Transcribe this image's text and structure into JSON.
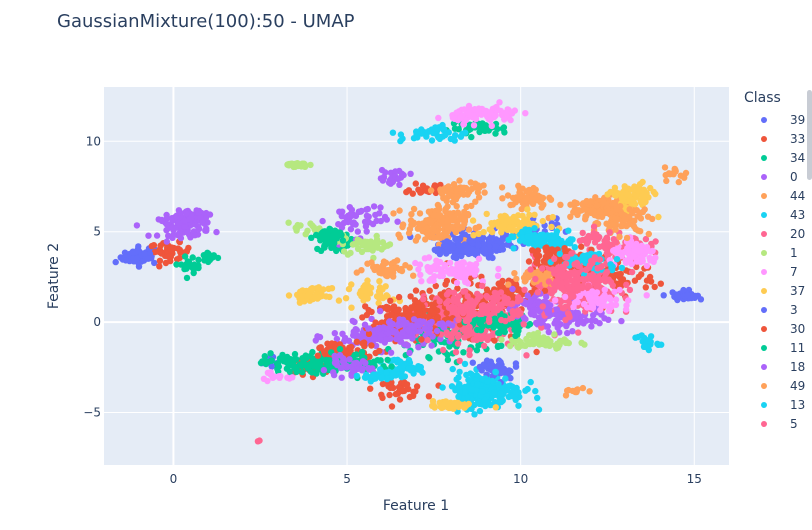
{
  "title": "GaussianMixture(100):50 - UMAP",
  "chart_data": {
    "type": "scatter",
    "title": "GaussianMixture(100):50 - UMAP",
    "xlabel": "Feature 1",
    "ylabel": "Feature 2",
    "xlim": [
      -2,
      16
    ],
    "ylim": [
      -7.9,
      13
    ],
    "xticks": [
      0,
      5,
      10,
      15
    ],
    "yticks": [
      -5,
      0,
      5,
      10
    ],
    "xtick_labels": [
      "0",
      "5",
      "10",
      "15"
    ],
    "ytick_labels": [
      "−5",
      "0",
      "5",
      "10"
    ],
    "grid": true,
    "legend_title": "Class",
    "legend_position": "right",
    "series": [
      {
        "name": "39",
        "color": "#636efa",
        "clusters": [
          [
            -0.9,
            3.7,
            0.5,
            0.4,
            35
          ],
          [
            8.7,
            4.3,
            0.9,
            0.6,
            150
          ],
          [
            14.7,
            1.5,
            0.3,
            0.2,
            25
          ],
          [
            10.3,
            5.1,
            0.6,
            0.6,
            40
          ],
          [
            2.9,
            -2.2,
            0.3,
            0.3,
            10
          ]
        ]
      },
      {
        "name": "33",
        "color": "#EF553B",
        "clusters": [
          [
            -0.1,
            3.9,
            0.5,
            0.4,
            40
          ],
          [
            8.3,
            0.5,
            1.6,
            1.4,
            200
          ],
          [
            6.5,
            -3.7,
            0.6,
            0.4,
            40
          ],
          [
            3.8,
            -2.5,
            0.6,
            0.4,
            50
          ],
          [
            12.5,
            2.5,
            1.2,
            1.0,
            100
          ],
          [
            7.3,
            7.4,
            0.4,
            0.3,
            20
          ]
        ]
      },
      {
        "name": "34",
        "color": "#00cc96",
        "clusters": [
          [
            4.6,
            4.4,
            0.4,
            0.4,
            70
          ],
          [
            3.6,
            -2.3,
            0.8,
            0.5,
            90
          ],
          [
            7.8,
            -0.8,
            1.2,
            0.9,
            120
          ],
          [
            0.5,
            3.2,
            0.4,
            0.4,
            20
          ],
          [
            8.8,
            10.7,
            0.7,
            0.3,
            40
          ]
        ]
      },
      {
        "name": "0",
        "color": "#ab63fa",
        "clusters": [
          [
            0.3,
            5.3,
            0.6,
            0.5,
            80
          ],
          [
            5.3,
            5.7,
            0.7,
            0.8,
            50
          ],
          [
            6.0,
            -0.8,
            1.2,
            0.6,
            120
          ],
          [
            11.3,
            0.2,
            0.9,
            0.6,
            90
          ],
          [
            6.3,
            8.0,
            0.4,
            0.4,
            25
          ]
        ]
      },
      {
        "name": "44",
        "color": "#FFA15A",
        "clusters": [
          [
            7.6,
            5.4,
            0.7,
            0.8,
            160
          ],
          [
            10.2,
            6.9,
            0.5,
            0.5,
            60
          ],
          [
            12.4,
            6.3,
            0.8,
            0.6,
            120
          ],
          [
            14.5,
            8.2,
            0.3,
            0.3,
            15
          ],
          [
            11.6,
            -3.8,
            0.3,
            0.2,
            10
          ]
        ]
      },
      {
        "name": "43",
        "color": "#19d3f3",
        "clusters": [
          [
            9.0,
            -3.8,
            0.9,
            0.8,
            180
          ],
          [
            10.8,
            4.4,
            0.6,
            0.4,
            60
          ],
          [
            7.5,
            10.4,
            0.8,
            0.4,
            40
          ],
          [
            13.6,
            -1.1,
            0.3,
            0.4,
            20
          ],
          [
            6.5,
            -2.5,
            0.5,
            0.4,
            40
          ]
        ]
      },
      {
        "name": "20",
        "color": "#FF6692",
        "clusters": [
          [
            8.4,
            0.0,
            1.3,
            1.2,
            200
          ],
          [
            11.6,
            2.0,
            1.0,
            1.4,
            200
          ],
          [
            13.0,
            4.2,
            0.6,
            0.5,
            60
          ]
        ]
      },
      {
        "name": "1",
        "color": "#B6E880",
        "clusters": [
          [
            3.5,
            8.7,
            0.3,
            0.1,
            25
          ],
          [
            10.6,
            -1.1,
            0.8,
            0.4,
            60
          ],
          [
            5.5,
            4.3,
            0.7,
            0.4,
            40
          ],
          [
            3.8,
            5.1,
            0.4,
            0.3,
            15
          ]
        ]
      },
      {
        "name": "7",
        "color": "#FF97FF",
        "clusters": [
          [
            9.0,
            11.5,
            0.8,
            0.4,
            90
          ],
          [
            13.3,
            3.7,
            0.6,
            0.5,
            80
          ],
          [
            8.0,
            2.8,
            1.0,
            0.6,
            80
          ],
          [
            12.2,
            1.3,
            0.8,
            0.5,
            60
          ],
          [
            2.8,
            -3.0,
            0.4,
            0.2,
            15
          ]
        ]
      },
      {
        "name": "37",
        "color": "#FECB52",
        "clusters": [
          [
            4.0,
            1.5,
            0.4,
            0.3,
            50
          ],
          [
            9.8,
            5.4,
            0.8,
            0.5,
            80
          ],
          [
            13.2,
            6.9,
            0.5,
            0.6,
            90
          ],
          [
            8.0,
            -4.6,
            0.5,
            0.2,
            40
          ],
          [
            5.8,
            1.6,
            0.5,
            0.5,
            40
          ]
        ]
      },
      {
        "name": "3",
        "color": "#636efa",
        "clusters": [
          [
            -1.0,
            3.6,
            0.4,
            0.4,
            30
          ],
          [
            8.2,
            4.1,
            0.5,
            0.3,
            50
          ],
          [
            9.3,
            -2.6,
            0.5,
            0.5,
            40
          ],
          [
            14.5,
            1.4,
            0.3,
            0.1,
            15
          ]
        ]
      },
      {
        "name": "30",
        "color": "#EF553B",
        "clusters": [
          [
            6.8,
            0.2,
            1.0,
            0.8,
            120
          ],
          [
            5.0,
            -1.6,
            0.8,
            0.4,
            60
          ],
          [
            9.7,
            1.6,
            0.7,
            0.6,
            60
          ],
          [
            11.0,
            3.5,
            0.7,
            0.6,
            60
          ]
        ]
      },
      {
        "name": "11",
        "color": "#00cc96",
        "clusters": [
          [
            4.5,
            4.8,
            0.3,
            0.3,
            40
          ],
          [
            5.2,
            -2.2,
            0.8,
            0.5,
            60
          ],
          [
            9.4,
            -0.1,
            0.7,
            0.5,
            60
          ],
          [
            1.0,
            3.6,
            0.2,
            0.3,
            15
          ]
        ]
      },
      {
        "name": "18",
        "color": "#ab63fa",
        "clusters": [
          [
            0.6,
            5.9,
            0.4,
            0.3,
            40
          ],
          [
            6.7,
            -0.3,
            1.0,
            0.5,
            80
          ],
          [
            10.3,
            0.8,
            0.6,
            0.6,
            60
          ],
          [
            5.0,
            -2.5,
            0.6,
            0.4,
            40
          ]
        ]
      },
      {
        "name": "49",
        "color": "#FFA15A",
        "clusters": [
          [
            8.2,
            7.2,
            0.6,
            0.5,
            60
          ],
          [
            12.9,
            5.6,
            0.7,
            0.6,
            70
          ],
          [
            10.5,
            2.5,
            0.6,
            0.4,
            40
          ],
          [
            6.2,
            3.0,
            0.6,
            0.4,
            40
          ]
        ]
      },
      {
        "name": "13",
        "color": "#19d3f3",
        "clusters": [
          [
            8.8,
            -3.5,
            0.6,
            0.7,
            70
          ],
          [
            10.3,
            4.7,
            0.5,
            0.3,
            40
          ],
          [
            12.0,
            3.3,
            0.7,
            0.5,
            40
          ],
          [
            6.0,
            -3.0,
            0.5,
            0.3,
            30
          ]
        ]
      },
      {
        "name": "5",
        "color": "#FF6692",
        "clusters": [
          [
            9.0,
            0.9,
            1.0,
            0.7,
            100
          ],
          [
            11.5,
            2.6,
            0.8,
            0.8,
            80
          ],
          [
            12.2,
            4.6,
            0.5,
            0.4,
            30
          ],
          [
            2.4,
            -6.5,
            0.1,
            0.1,
            2
          ]
        ]
      }
    ]
  }
}
